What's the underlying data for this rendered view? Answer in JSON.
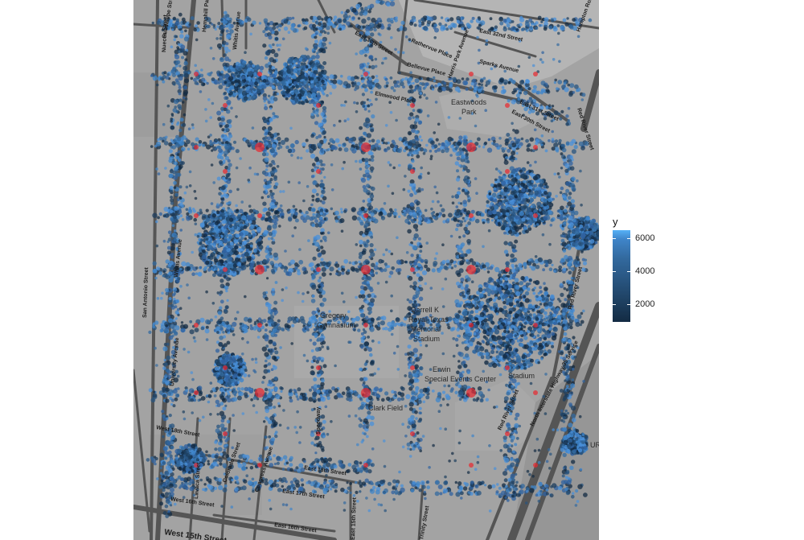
{
  "map": {
    "street_labels": [
      "Guadalupe Street",
      "Nueces Street",
      "Hemphill Park",
      "Whitis Avenue",
      "East 30th Street",
      "East 32nd Street",
      "Bellevue Place",
      "Hampton Road",
      "Rathervue Place",
      "Harris Park Avenue",
      "Sparks Avenue",
      "Elmwood Place",
      "East 31st Street",
      "East 30th Street",
      "Red River Street",
      "San Antonio Street",
      "Colorado Street",
      "Congress Avenue",
      "Lavaca Street",
      "West 16th Street",
      "West 15th Street",
      "East 18th Street",
      "East 17th Street",
      "East 16th Street",
      "Red River Street",
      "North Interstate Highway 35 Service",
      "Speedway",
      "East 15th Street",
      "West 18th Street",
      "University Avenue",
      "Whitis Avenue",
      "Trinity Street",
      "Red River Street"
    ],
    "place_labels": {
      "eastwoods": "Eastwoods",
      "park": "Park",
      "gregory": "Gregory",
      "gymnasium": "Gymnasium",
      "stadium1": "Darrell K",
      "stadium2": "Royal-Texas",
      "stadium3": "Memorial",
      "stadium4": "Stadium",
      "center1": "Erwin",
      "center2": "Special Events Center",
      "clark": "Clark Field",
      "ur": "UR",
      "disch": "Stadium"
    }
  },
  "legend": {
    "title": "y",
    "max_value": 6500,
    "min_value": 900,
    "ticks": [
      {
        "value": 6000,
        "label": "6000"
      },
      {
        "value": 4000,
        "label": "4000"
      },
      {
        "value": 2000,
        "label": "2000"
      }
    ],
    "low_color": "#132b43",
    "high_color": "#56b1f7"
  },
  "colors": {
    "map_background": "#a3a3a3",
    "road": "#595959",
    "block": "#b2b2b2",
    "point_base": "#2f62a0",
    "red_point": "#e8262e"
  }
}
